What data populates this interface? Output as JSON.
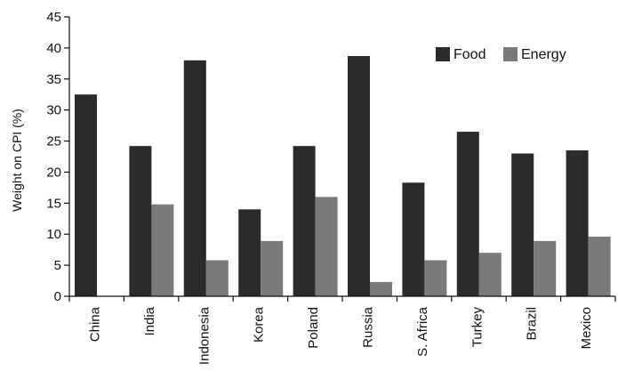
{
  "chart_data": {
    "type": "bar",
    "title": "",
    "xlabel": "",
    "ylabel": "Weight on CPI (%)",
    "ylim": [
      0,
      45
    ],
    "yticks": [
      0,
      5,
      10,
      15,
      20,
      25,
      30,
      35,
      40,
      45
    ],
    "grid": false,
    "legend_position": "top-right",
    "categories": [
      "China",
      "India",
      "Indonesia",
      "Korea",
      "Poland",
      "Russia",
      "S. Africa",
      "Turkey",
      "Brazil",
      "Mexico"
    ],
    "series": [
      {
        "name": "Food",
        "color": "#2b2b2b",
        "values": [
          32.5,
          24.2,
          38.0,
          14.0,
          24.2,
          38.7,
          18.3,
          26.5,
          23.0,
          23.5
        ]
      },
      {
        "name": "Energy",
        "color": "#7a7a7a",
        "values": [
          0,
          14.8,
          5.8,
          8.9,
          16.0,
          2.3,
          5.8,
          7.0,
          8.9,
          9.6
        ]
      }
    ]
  }
}
